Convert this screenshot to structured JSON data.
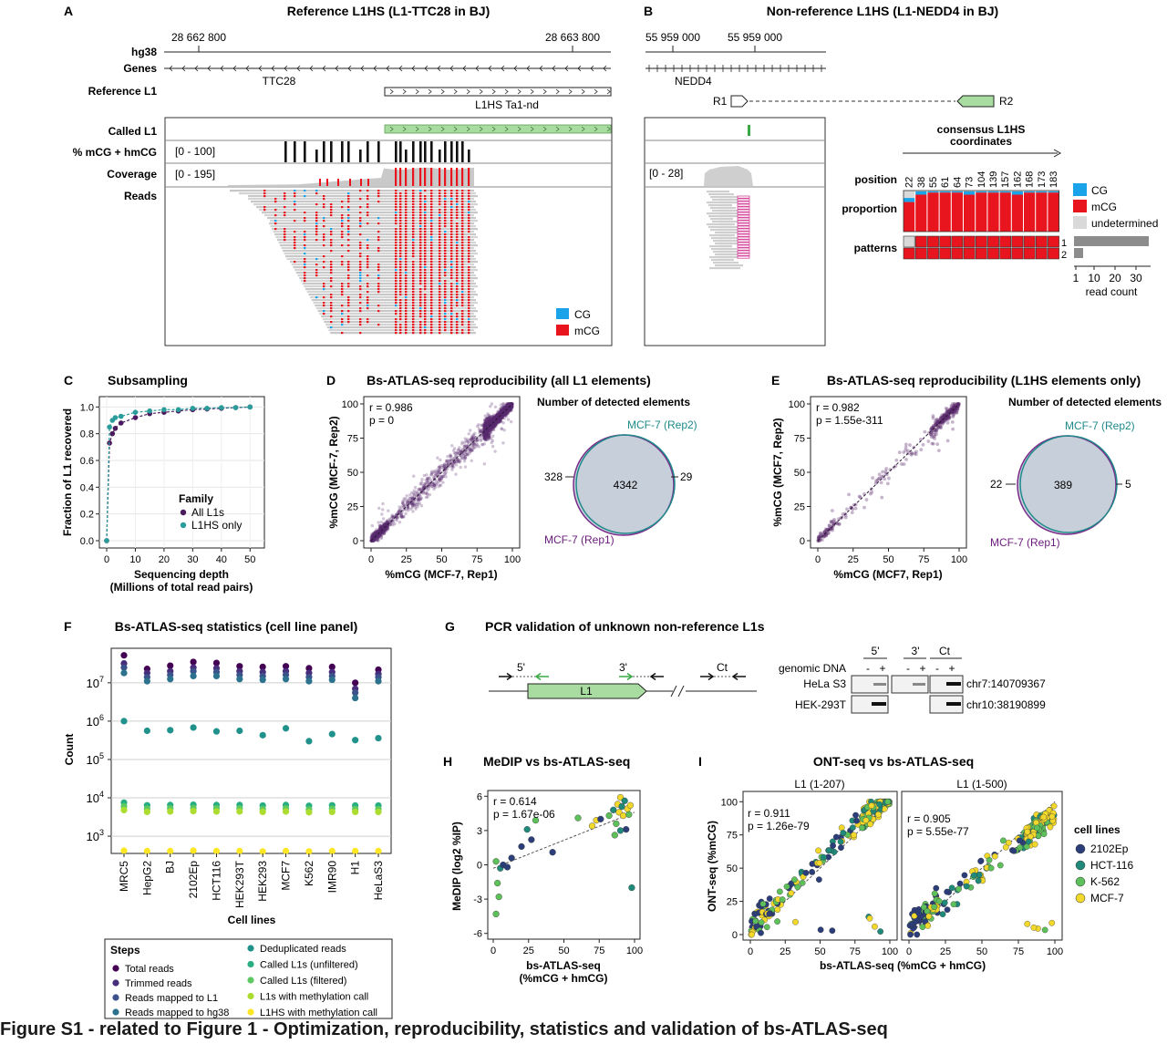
{
  "panels": {
    "A": {
      "letter": "A",
      "title": "Reference L1HS (L1-TTC28 in BJ)",
      "coord_left": "28 662 800",
      "coord_right": "28 663 800",
      "track_hg38": "hg38",
      "track_genes": "Genes",
      "track_ref": "Reference L1",
      "gene_name": "TTC28",
      "ref_l1_name": "L1HS Ta1-nd",
      "track_called": "Called L1",
      "track_meth": "% mCG + hmCG",
      "track_cov": "Coverage",
      "track_reads": "Reads",
      "meth_range": "[0 - 100]",
      "cov_range": "[0 - 195]",
      "legend_cg": "CG",
      "legend_mcg": "mCG"
    },
    "B": {
      "letter": "B",
      "title": "Non-reference L1HS (L1-NEDD4 in BJ)",
      "coord_left": "55 959 000",
      "coord_right": "55 959 000",
      "gene_name": "NEDD4",
      "primer_r1": "R1",
      "primer_r2": "R2",
      "cov_range": "[0 - 28]",
      "consensus_title_1": "consensus L1HS",
      "consensus_title_2": "coordinates",
      "positions": [
        "22",
        "38",
        "55",
        "61",
        "64",
        "73",
        "104",
        "139",
        "157",
        "162",
        "168",
        "173",
        "183"
      ],
      "row_position": "position",
      "row_proportion": "proportion",
      "row_patterns": "patterns",
      "legend": [
        "CG",
        "mCG",
        "undetermined"
      ],
      "pattern_ids": [
        "1",
        "2"
      ],
      "read_count_ticks": [
        "1",
        "10",
        "20",
        "30"
      ],
      "read_count_label": "read count"
    },
    "C": {
      "letter": "C",
      "title": "Subsampling",
      "ylabel": "Fraction of L1 recovered",
      "xlabel_1": "Sequencing depth",
      "xlabel_2": "(Millions of total read pairs)",
      "legend_title": "Family",
      "legend": [
        "All L1s",
        "L1HS only"
      ]
    },
    "D": {
      "letter": "D",
      "title": "Bs-ATLAS-seq reproducibility (all L1 elements)",
      "ylabel": "%mCG (MCF-7, Rep2)",
      "xlabel": "%mCG (MCF-7, Rep1)",
      "stat_r": "r = 0.986",
      "stat_p": "p = 0",
      "venn_title": "Number of detected elements",
      "venn_rep2": "MCF-7 (Rep2)",
      "venn_rep1": "MCF-7 (Rep1)",
      "venn_left": "328",
      "venn_center": "4342",
      "venn_right": "29"
    },
    "E": {
      "letter": "E",
      "title": "Bs-ATLAS-seq reproducibility (L1HS elements only)",
      "ylabel": "%mCG (MCF7, Rep2)",
      "xlabel": "%mCG (MCF7, Rep1)",
      "stat_r": "r = 0.982",
      "stat_p": "p = 1.55e-311",
      "venn_title": "Number of detected elements",
      "venn_rep2": "MCF-7 (Rep2)",
      "venn_rep1": "MCF-7 (Rep1)",
      "venn_left": "22",
      "venn_center": "389",
      "venn_right": "5"
    },
    "F": {
      "letter": "F",
      "title": "Bs-ATLAS-seq statistics (cell line panel)",
      "ylabel": "Count",
      "xlabel": "Cell lines",
      "legend_title": "Steps",
      "steps": [
        "Total reads",
        "Trimmed reads",
        "Reads mapped to L1",
        "Reads mapped to hg38",
        "Deduplicated reads",
        "Called L1s (unfiltered)",
        "Called L1s (filtered)",
        "L1s with methylation call",
        "L1HS with methylation call"
      ]
    },
    "G": {
      "letter": "G",
      "title": "PCR validation of unknown non-reference L1s",
      "l1_label": "L1",
      "primer_5": "5'",
      "primer_3": "3'",
      "primer_ct": "Ct",
      "gel_cols": [
        "5'",
        "3'",
        "Ct"
      ],
      "gel_minus": "-",
      "gel_plus": "+",
      "genomic_dna": "genomic DNA",
      "rows": [
        {
          "cell": "HeLa S3",
          "locus": "chr7:140709367"
        },
        {
          "cell": "HEK-293T",
          "locus": "chr10:38190899"
        }
      ]
    },
    "H": {
      "letter": "H",
      "title": "MeDIP vs bs-ATLAS-seq",
      "ylabel": "MeDIP (log2 %IP)",
      "xlabel_1": "bs-ATLAS-seq",
      "xlabel_2": "(%mCG + hmCG)",
      "stat_r": "r = 0.614",
      "stat_p": "p = 1.67e-06"
    },
    "I": {
      "letter": "I",
      "title": "ONT-seq vs bs-ATLAS-seq",
      "facet_left": "L1 (1-207)",
      "facet_right": "L1 (1-500)",
      "ylabel": "ONT-seq (%mCG)",
      "xlabel": "bs-ATLAS-seq (%mCG + hmCG)",
      "left_r": "r = 0.911",
      "left_p": "p = 1.26e-79",
      "right_r": "r = 0.905",
      "right_p": "p = 5.55e-77",
      "legend_title": "cell lines",
      "legend": [
        "2102Ep",
        "HCT-116",
        "K-562",
        "MCF-7"
      ]
    }
  },
  "colors": {
    "cg": "#1aa3e8",
    "mcg": "#e8141e",
    "undetermined": "#d9d9d9",
    "called_l1": "#a8dca0",
    "purple": "#4b1a5e",
    "teal": "#2a9d9a",
    "venn_fill": "#c7cfdb",
    "s_2102ep": "#2c3e7a",
    "s_hct116": "#1f8a7a",
    "s_k562": "#5ec05a",
    "s_mcf7": "#f2d82b"
  },
  "caption": "Figure S1 - related to Figure 1 - Optimization, reproducibility, statistics and validation of bs-ATLAS-seq",
  "chart_data": [
    {
      "type": "line",
      "id": "C",
      "title": "Subsampling",
      "xlabel": "Sequencing depth (Millions of total read pairs)",
      "ylabel": "Fraction of L1 recovered",
      "xlim": [
        0,
        55
      ],
      "ylim": [
        0,
        1.05
      ],
      "xticks": [
        0,
        10,
        20,
        30,
        40,
        50
      ],
      "yticks": [
        0.0,
        0.2,
        0.4,
        0.6,
        0.8,
        1.0
      ],
      "series": [
        {
          "name": "All L1s",
          "x": [
            0,
            1,
            2,
            3,
            5,
            10,
            15,
            20,
            25,
            30,
            35,
            40,
            45,
            50
          ],
          "y": [
            0,
            0.73,
            0.8,
            0.84,
            0.88,
            0.92,
            0.95,
            0.96,
            0.97,
            0.98,
            0.985,
            0.99,
            0.995,
            1.0
          ]
        },
        {
          "name": "L1HS only",
          "x": [
            0,
            1,
            2,
            3,
            5,
            10,
            15,
            20,
            25,
            30,
            35,
            40,
            45,
            50
          ],
          "y": [
            0,
            0.85,
            0.9,
            0.92,
            0.93,
            0.96,
            0.97,
            0.98,
            0.98,
            0.99,
            0.99,
            0.995,
            0.995,
            1.0
          ]
        }
      ]
    },
    {
      "type": "scatter",
      "id": "D",
      "title": "Bs-ATLAS-seq reproducibility (all L1 elements)",
      "xlabel": "%mCG (MCF-7, Rep1)",
      "ylabel": "%mCG (MCF-7, Rep2)",
      "xlim": [
        0,
        100
      ],
      "ylim": [
        0,
        100
      ],
      "ticks": [
        0,
        25,
        50,
        75,
        100
      ],
      "stats": {
        "r": 0.986,
        "p": "0"
      },
      "n_points": 4342,
      "venn": {
        "left_only": 328,
        "both": 4342,
        "right_only": 29,
        "sets": [
          "MCF-7 (Rep1)",
          "MCF-7 (Rep2)"
        ]
      }
    },
    {
      "type": "scatter",
      "id": "E",
      "title": "Bs-ATLAS-seq reproducibility (L1HS elements only)",
      "xlabel": "%mCG (MCF7, Rep1)",
      "ylabel": "%mCG (MCF7, Rep2)",
      "xlim": [
        0,
        100
      ],
      "ylim": [
        0,
        100
      ],
      "ticks": [
        0,
        25,
        50,
        75,
        100
      ],
      "stats": {
        "r": 0.982,
        "p": "1.55e-311"
      },
      "n_points": 389,
      "venn": {
        "left_only": 22,
        "both": 389,
        "right_only": 5,
        "sets": [
          "MCF-7 (Rep1)",
          "MCF-7 (Rep2)"
        ]
      }
    },
    {
      "type": "scatter",
      "id": "F",
      "title": "Bs-ATLAS-seq statistics (cell line panel)",
      "scale": "log10",
      "ylabel": "Count",
      "xlabel": "Cell lines",
      "ylim_log10": [
        2.55,
        7.9
      ],
      "ytick_exponents": [
        3,
        4,
        5,
        6,
        7
      ],
      "categories": [
        "MRC5",
        "HepG2",
        "BJ",
        "2102Ep",
        "HCT116",
        "HEK293T",
        "HEK293",
        "MCF7",
        "K562",
        "IMR90",
        "H1",
        "HeLaS3"
      ],
      "series": [
        {
          "name": "Total reads",
          "color": "#440154",
          "values": [
            52000000,
            23000000,
            28000000,
            35000000,
            33000000,
            27000000,
            26000000,
            27000000,
            24000000,
            26000000,
            10000000,
            22000000
          ]
        },
        {
          "name": "Trimmed reads",
          "color": "#472d7b",
          "values": [
            32000000,
            18000000,
            20000000,
            25000000,
            24000000,
            20000000,
            19000000,
            20000000,
            18000000,
            19000000,
            7000000,
            17000000
          ]
        },
        {
          "name": "Reads mapped to L1",
          "color": "#3b528b",
          "values": [
            25000000,
            14000000,
            16000000,
            20000000,
            19000000,
            16000000,
            15000000,
            16000000,
            14000000,
            15000000,
            5500000,
            14000000
          ]
        },
        {
          "name": "Reads mapped to hg38",
          "color": "#2c728e",
          "values": [
            18000000,
            11000000,
            12500000,
            15000000,
            15000000,
            12500000,
            12000000,
            12500000,
            11000000,
            12000000,
            4000000,
            11000000
          ]
        },
        {
          "name": "Deduplicated reads",
          "color": "#21918c",
          "values": [
            1000000,
            560000,
            580000,
            680000,
            540000,
            560000,
            430000,
            650000,
            300000,
            460000,
            320000,
            360000
          ]
        },
        {
          "name": "Called L1s (unfiltered)",
          "color": "#28ae80",
          "values": [
            7500,
            6400,
            6500,
            6600,
            6500,
            6500,
            6300,
            6500,
            6200,
            6400,
            6300,
            6300
          ]
        },
        {
          "name": "Called L1s (filtered)",
          "color": "#5ec962",
          "values": [
            6000,
            5200,
            5300,
            5400,
            5300,
            5300,
            5100,
            5300,
            5000,
            5200,
            5100,
            5100
          ]
        },
        {
          "name": "L1s with methylation call",
          "color": "#addc30",
          "values": [
            4800,
            4300,
            4400,
            4500,
            4400,
            4400,
            4300,
            4400,
            4200,
            4300,
            4300,
            4300
          ]
        },
        {
          "name": "L1HS with methylation call",
          "color": "#fde725",
          "values": [
            420,
            410,
            410,
            420,
            410,
            410,
            400,
            410,
            400,
            410,
            410,
            410
          ]
        }
      ]
    },
    {
      "type": "scatter",
      "id": "H",
      "title": "MeDIP vs bs-ATLAS-seq",
      "xlabel": "bs-ATLAS-seq (%mCG + hmCG)",
      "ylabel": "MeDIP (log2 %IP)",
      "xlim": [
        0,
        100
      ],
      "ylim": [
        -6.5,
        6.5
      ],
      "xticks": [
        0,
        25,
        50,
        75,
        100
      ],
      "yticks": [
        -6,
        -3,
        0,
        3,
        6
      ],
      "stats": {
        "r": 0.614,
        "p": "1.67e-06"
      },
      "fit": {
        "x": [
          0,
          100
        ],
        "y": [
          -0.3,
          4.6
        ]
      },
      "points": [
        {
          "x": 2,
          "y": 0.3,
          "g": "K-562"
        },
        {
          "x": 3,
          "y": -1.6,
          "g": "K-562"
        },
        {
          "x": 2,
          "y": -4.3,
          "g": "K-562"
        },
        {
          "x": 4,
          "y": -2.8,
          "g": "K-562"
        },
        {
          "x": 5,
          "y": -0.3,
          "g": "HCT-116"
        },
        {
          "x": 7,
          "y": 0,
          "g": "2102Ep"
        },
        {
          "x": 10,
          "y": -0.2,
          "g": "2102Ep"
        },
        {
          "x": 13,
          "y": 0.6,
          "g": "2102Ep"
        },
        {
          "x": 20,
          "y": 1.6,
          "g": "2102Ep"
        },
        {
          "x": 24,
          "y": 3.1,
          "g": "HCT-116"
        },
        {
          "x": 30,
          "y": 3.9,
          "g": "K-562"
        },
        {
          "x": 27,
          "y": 2.2,
          "g": "2102Ep"
        },
        {
          "x": 42,
          "y": 1.1,
          "g": "2102Ep"
        },
        {
          "x": 60,
          "y": 4.1,
          "g": "K-562"
        },
        {
          "x": 70,
          "y": 3.4,
          "g": "MCF-7"
        },
        {
          "x": 73,
          "y": 3.9,
          "g": "MCF-7"
        },
        {
          "x": 76,
          "y": 4.0,
          "g": "2102Ep"
        },
        {
          "x": 82,
          "y": 4.3,
          "g": "K-562"
        },
        {
          "x": 85,
          "y": 4.8,
          "g": "HCT-116"
        },
        {
          "x": 87,
          "y": 3.6,
          "g": "K-562"
        },
        {
          "x": 88,
          "y": 5.3,
          "g": "MCF-7"
        },
        {
          "x": 89,
          "y": 4.6,
          "g": "MCF-7"
        },
        {
          "x": 90,
          "y": 5.9,
          "g": "MCF-7"
        },
        {
          "x": 91,
          "y": 5.1,
          "g": "HCT-116"
        },
        {
          "x": 92,
          "y": 4.3,
          "g": "MCF-7"
        },
        {
          "x": 93,
          "y": 5.6,
          "g": "HCT-116"
        },
        {
          "x": 94,
          "y": 3.1,
          "g": "2102Ep"
        },
        {
          "x": 95,
          "y": 4.9,
          "g": "MCF-7"
        },
        {
          "x": 96,
          "y": 4.4,
          "g": "K-562"
        },
        {
          "x": 97,
          "y": 5.2,
          "g": "MCF-7"
        },
        {
          "x": 98,
          "y": -2.0,
          "g": "HCT-116"
        },
        {
          "x": 90,
          "y": 3.0,
          "g": "HCT-116"
        },
        {
          "x": 86,
          "y": 2.6,
          "g": "K-562"
        }
      ]
    },
    {
      "type": "scatter",
      "id": "I",
      "title": "ONT-seq vs bs-ATLAS-seq",
      "facets": [
        "L1 (1-207)",
        "L1 (1-500)"
      ],
      "xlabel": "bs-ATLAS-seq (%mCG + hmCG)",
      "ylabel": "ONT-seq (%mCG)",
      "xlim": [
        0,
        100
      ],
      "ylim": [
        0,
        105
      ],
      "ticks": [
        0,
        25,
        50,
        75,
        100
      ],
      "stats": [
        {
          "r": 0.911,
          "p": "1.26e-79"
        },
        {
          "r": 0.905,
          "p": "5.55e-77"
        }
      ],
      "groups": [
        "2102Ep",
        "HCT-116",
        "K-562",
        "MCF-7"
      ]
    }
  ]
}
